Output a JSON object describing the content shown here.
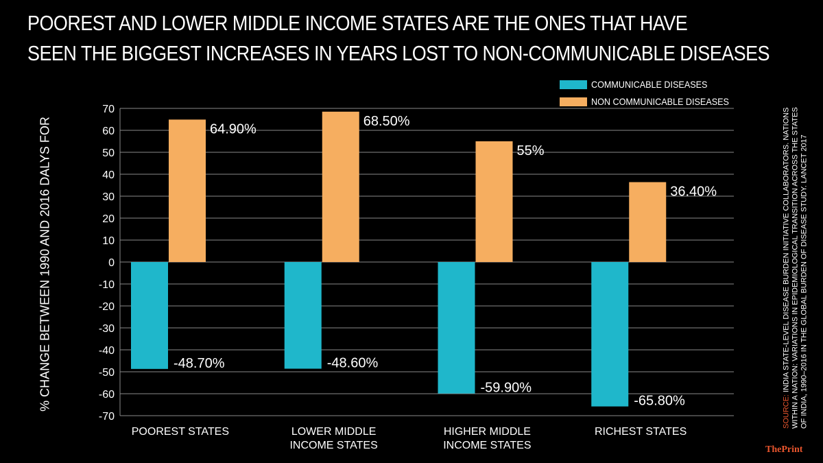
{
  "title": {
    "line1": "POOREST AND LOWER MIDDLE INCOME STATES ARE THE ONES THAT HAVE",
    "line2": "SEEN THE BIGGEST INCREASES IN YEARS LOST TO NON-COMMUNICABLE DISEASES"
  },
  "legend": [
    {
      "label": "COMMUNICABLE DISEASES",
      "color": "#1fb7cb"
    },
    {
      "label": "NON COMMUNICABLE DISEASES",
      "color": "#f6ae60"
    }
  ],
  "ylabel": "% CHANGE BETWEEN 1990 AND 2016 DALYS FOR",
  "source": {
    "key": "SOURCE:",
    "text": "INDIA STATE-LEVEL DISEASE BURDEN INITIATIVE COLLABORATORS. NATIONS WITHIN A NATION: VARIATIONS IN EPIDEMIOLOGICAL TRANSITION ACROSS THE STATES OF INDIA, 1990–2016 IN THE GLOBAL BURDEN OF DISEASE STUDY. LANCET 2017"
  },
  "brand": "ThePrint",
  "chart_data": {
    "type": "bar",
    "categories": [
      [
        "POOREST STATES"
      ],
      [
        "LOWER MIDDLE",
        "INCOME STATES"
      ],
      [
        "HIGHER MIDDLE",
        "INCOME STATES"
      ],
      [
        "RICHEST STATES"
      ]
    ],
    "series": [
      {
        "name": "COMMUNICABLE DISEASES",
        "color": "#1fb7cb",
        "values": [
          -48.7,
          -48.6,
          -59.9,
          -65.8
        ],
        "labels": [
          "-48.70%",
          "-48.60%",
          "-59.90%",
          "-65.80%"
        ]
      },
      {
        "name": "NON COMMUNICABLE DISEASES",
        "color": "#f6ae60",
        "values": [
          64.9,
          68.5,
          55,
          36.4
        ],
        "labels": [
          "64.90%",
          "68.50%",
          "55%",
          "36.40%"
        ]
      }
    ],
    "ylim": [
      -70,
      70
    ],
    "yticks": [
      70,
      60,
      50,
      40,
      30,
      20,
      10,
      0,
      -10,
      -20,
      -30,
      -40,
      -50,
      -60,
      -70
    ],
    "grid": true,
    "legend_position": "top-right"
  }
}
